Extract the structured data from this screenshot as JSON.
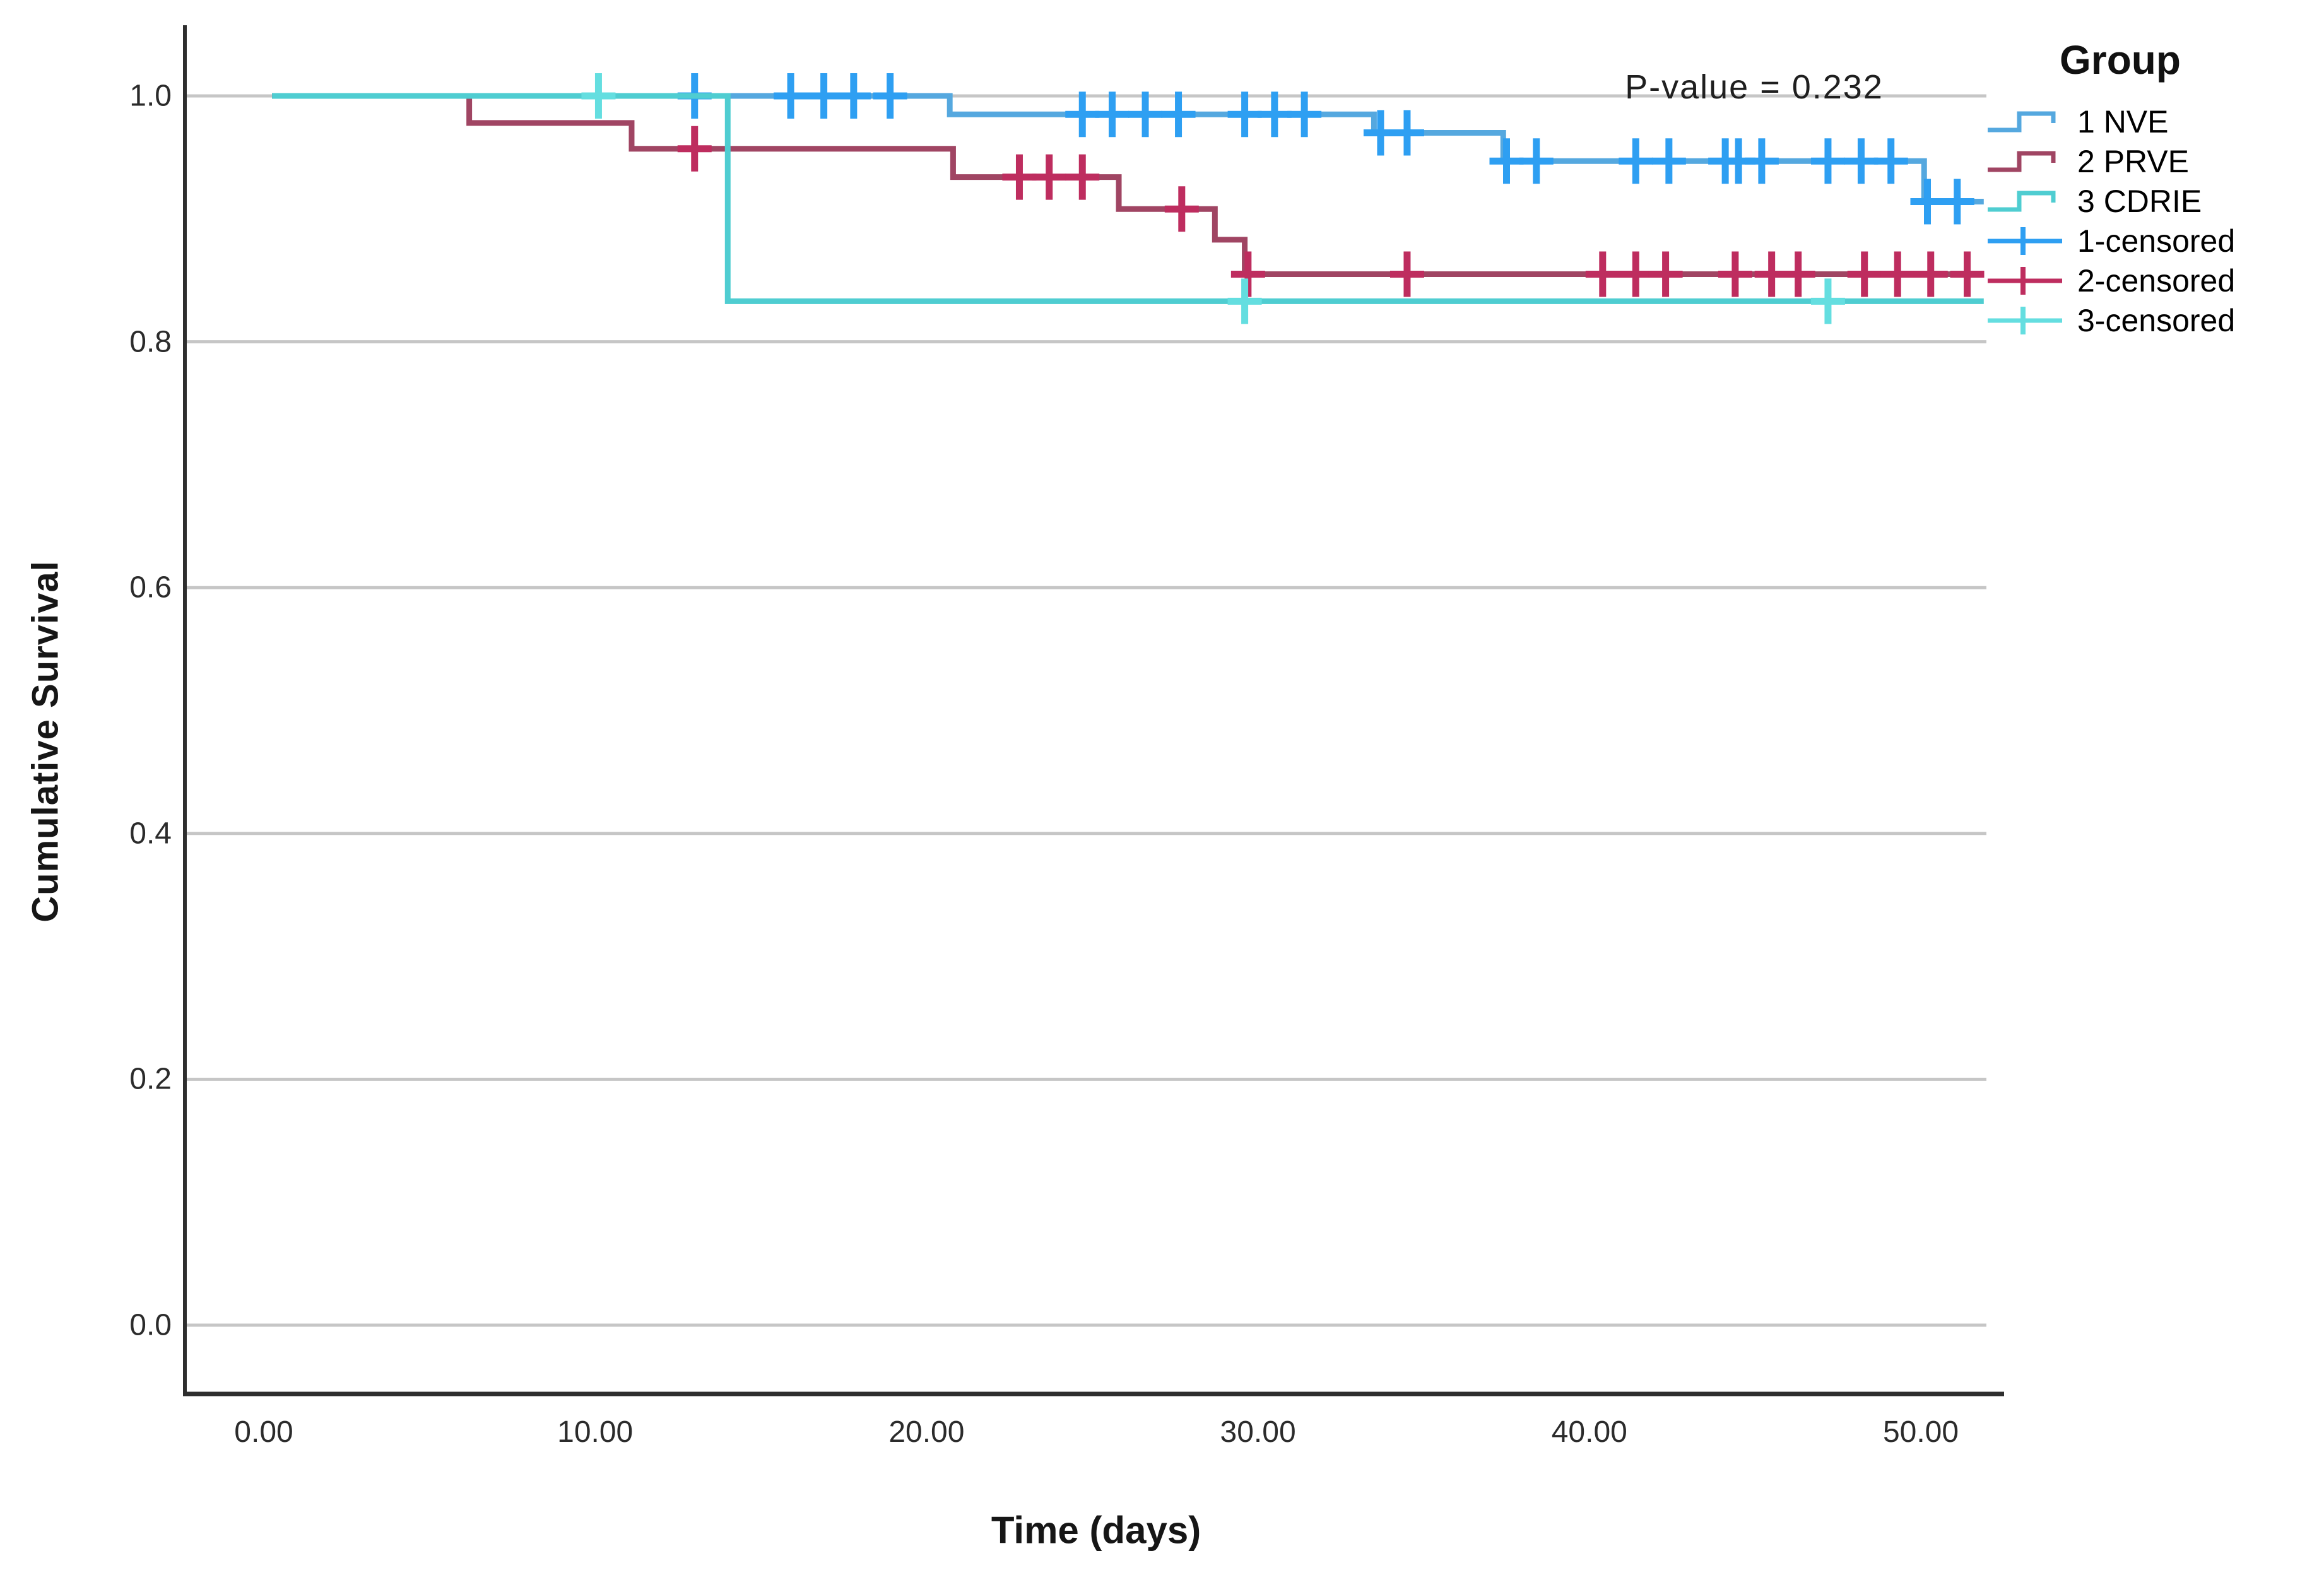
{
  "chart_data": {
    "type": "line",
    "subtype": "kaplan-meier-step-survival",
    "annotation": "P-value = 0.232",
    "xlabel": "Time (days)",
    "ylabel": "Cumulative Survival",
    "x_ticks": {
      "values": [
        0,
        10,
        20,
        30,
        40,
        50
      ],
      "labels": [
        "0.00",
        "10.00",
        "20.00",
        "30.00",
        "40.00",
        "50.00"
      ]
    },
    "y_ticks": {
      "values": [
        0.0,
        0.2,
        0.4,
        0.6,
        0.8,
        1.0
      ],
      "labels": [
        "0.0",
        "0.2",
        "0.4",
        "0.6",
        "0.8",
        "1.0"
      ]
    },
    "xlim": [
      -2.4,
      52.5
    ],
    "ylim": [
      -0.055,
      1.06
    ],
    "grid": "horizontal",
    "x_start": 0.25,
    "x_end": 51.9,
    "legend": {
      "title": "Group",
      "position": "right",
      "entries": [
        {
          "label": "1 NVE",
          "type": "line",
          "color": "#55A8DF"
        },
        {
          "label": "2 PRVE",
          "type": "line",
          "color": "#A04563"
        },
        {
          "label": "3 CDRIE",
          "type": "line",
          "color": "#4FCDD1"
        },
        {
          "label": "1-censored",
          "type": "censor",
          "color": "#2E9FF2"
        },
        {
          "label": "2-censored",
          "type": "censor",
          "color": "#BE2D5F"
        },
        {
          "label": "3-censored",
          "type": "censor",
          "color": "#64DEE0"
        }
      ]
    },
    "series": [
      {
        "name": "1 NVE",
        "color": "#55A8DF",
        "censor_color": "#2E9FF2",
        "steps": [
          [
            0.25,
            1.0
          ],
          [
            20.7,
            0.985
          ],
          [
            33.5,
            0.97
          ],
          [
            37.4,
            0.947
          ],
          [
            50.1,
            0.914
          ]
        ],
        "censors": [
          [
            13.0,
            1.0
          ],
          [
            15.9,
            1.0
          ],
          [
            16.9,
            1.0
          ],
          [
            17.8,
            1.0
          ],
          [
            18.9,
            1.0
          ],
          [
            24.7,
            0.985
          ],
          [
            25.6,
            0.985
          ],
          [
            26.6,
            0.985
          ],
          [
            27.6,
            0.985
          ],
          [
            29.6,
            0.985
          ],
          [
            30.5,
            0.985
          ],
          [
            31.4,
            0.985
          ],
          [
            33.7,
            0.97
          ],
          [
            34.5,
            0.97
          ],
          [
            37.5,
            0.947
          ],
          [
            38.4,
            0.947
          ],
          [
            41.4,
            0.947
          ],
          [
            42.4,
            0.947
          ],
          [
            44.1,
            0.947
          ],
          [
            44.5,
            0.947
          ],
          [
            45.2,
            0.947
          ],
          [
            47.2,
            0.947
          ],
          [
            48.2,
            0.947
          ],
          [
            49.1,
            0.947
          ],
          [
            50.2,
            0.914
          ],
          [
            51.1,
            0.914
          ]
        ]
      },
      {
        "name": "2 PRVE",
        "color": "#A04563",
        "censor_color": "#BE2D5F",
        "steps": [
          [
            0.25,
            1.0
          ],
          [
            6.2,
            0.978
          ],
          [
            11.1,
            0.957
          ],
          [
            20.8,
            0.934
          ],
          [
            25.8,
            0.908
          ],
          [
            28.7,
            0.883
          ],
          [
            29.6,
            0.855
          ]
        ],
        "censors": [
          [
            13.0,
            0.957
          ],
          [
            22.8,
            0.934
          ],
          [
            23.7,
            0.934
          ],
          [
            24.7,
            0.934
          ],
          [
            27.7,
            0.908
          ],
          [
            29.7,
            0.855
          ],
          [
            34.5,
            0.855
          ],
          [
            40.4,
            0.855
          ],
          [
            41.4,
            0.855
          ],
          [
            42.3,
            0.855
          ],
          [
            44.4,
            0.855
          ],
          [
            45.5,
            0.855
          ],
          [
            46.3,
            0.855
          ],
          [
            48.3,
            0.855
          ],
          [
            49.3,
            0.855
          ],
          [
            50.3,
            0.855
          ],
          [
            51.4,
            0.855
          ]
        ]
      },
      {
        "name": "3 CDRIE",
        "color": "#4FCDD1",
        "censor_color": "#64DEE0",
        "steps": [
          [
            0.25,
            1.0
          ],
          [
            14.0,
            0.833
          ]
        ],
        "censors": [
          [
            10.1,
            1.0
          ],
          [
            29.6,
            0.833
          ],
          [
            47.2,
            0.833
          ]
        ]
      }
    ],
    "colors": {
      "grid": "#C6C6C6",
      "axis": "#2E2E2E",
      "text": "#161616"
    }
  }
}
